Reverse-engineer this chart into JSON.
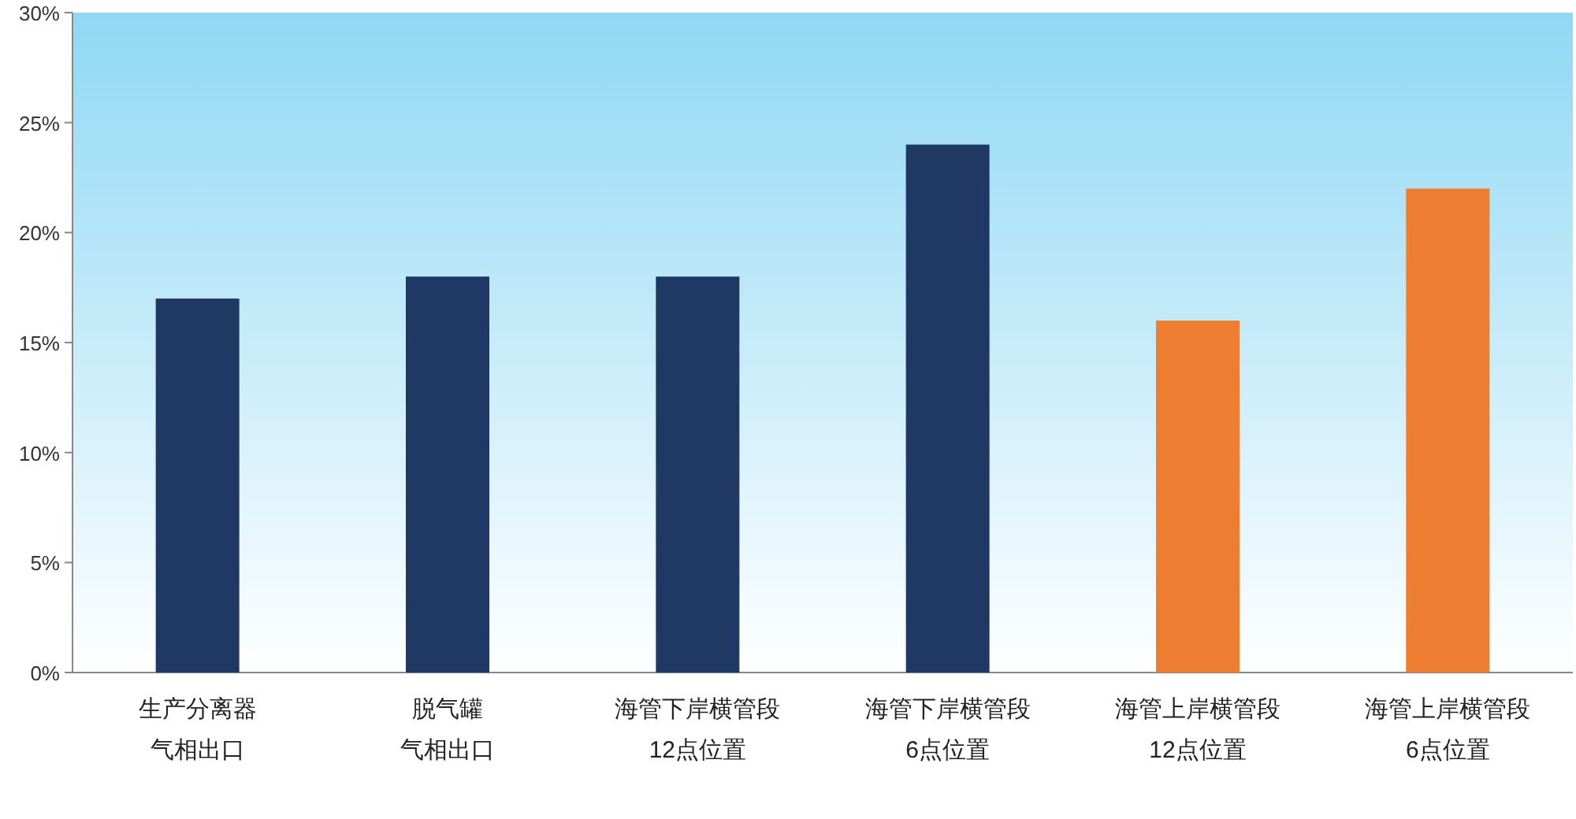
{
  "chart_data": {
    "type": "bar",
    "categories": [
      "生产分离器气相出口",
      "脱气罐气相出口",
      "海管下岸横管段12点位置",
      "海管下岸横管段6点位置",
      "海管上岸横管段12点位置",
      "海管上岸横管段6点位置"
    ],
    "values": [
      17,
      18,
      18,
      24,
      16,
      22
    ],
    "colors": [
      "#1f3864",
      "#1f3864",
      "#1f3864",
      "#1f3864",
      "#ed7d31",
      "#ed7d31"
    ],
    "ylim": [
      0,
      30
    ],
    "yticks": [
      {
        "value": 0,
        "label": "0%"
      },
      {
        "value": 5,
        "label": "5%"
      },
      {
        "value": 10,
        "label": "10%"
      },
      {
        "value": 15,
        "label": "15%"
      },
      {
        "value": 20,
        "label": "20%"
      },
      {
        "value": 25,
        "label": "25%"
      },
      {
        "value": 30,
        "label": "30%"
      }
    ],
    "grid": false
  }
}
